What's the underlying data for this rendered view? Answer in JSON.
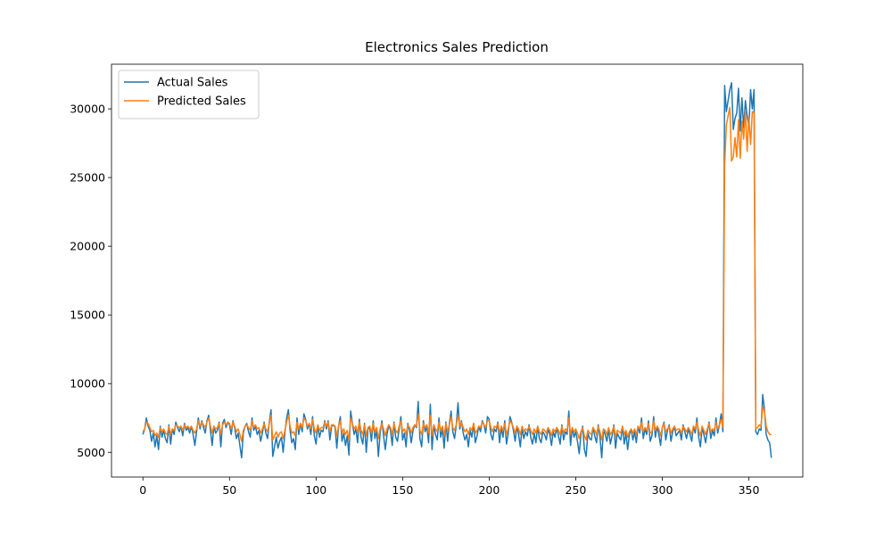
{
  "chart_data": {
    "type": "line",
    "title": "Electronics Sales Prediction",
    "x": [
      0,
      1,
      2,
      3,
      4,
      5,
      6,
      7,
      8,
      9,
      10,
      11,
      12,
      13,
      14,
      15,
      16,
      17,
      18,
      19,
      20,
      21,
      22,
      23,
      24,
      25,
      26,
      27,
      28,
      29,
      30,
      31,
      32,
      33,
      34,
      35,
      36,
      37,
      38,
      39,
      40,
      41,
      42,
      43,
      44,
      45,
      46,
      47,
      48,
      49,
      50,
      51,
      52,
      53,
      54,
      55,
      56,
      57,
      58,
      59,
      60,
      61,
      62,
      63,
      64,
      65,
      66,
      67,
      68,
      69,
      70,
      71,
      72,
      73,
      74,
      75,
      76,
      77,
      78,
      79,
      80,
      81,
      82,
      83,
      84,
      85,
      86,
      87,
      88,
      89,
      90,
      91,
      92,
      93,
      94,
      95,
      96,
      97,
      98,
      99,
      100,
      101,
      102,
      103,
      104,
      105,
      106,
      107,
      108,
      109,
      110,
      111,
      112,
      113,
      114,
      115,
      116,
      117,
      118,
      119,
      120,
      121,
      122,
      123,
      124,
      125,
      126,
      127,
      128,
      129,
      130,
      131,
      132,
      133,
      134,
      135,
      136,
      137,
      138,
      139,
      140,
      141,
      142,
      143,
      144,
      145,
      146,
      147,
      148,
      149,
      150,
      151,
      152,
      153,
      154,
      155,
      156,
      157,
      158,
      159,
      160,
      161,
      162,
      163,
      164,
      165,
      166,
      167,
      168,
      169,
      170,
      171,
      172,
      173,
      174,
      175,
      176,
      177,
      178,
      179,
      180,
      181,
      182,
      183,
      184,
      185,
      186,
      187,
      188,
      189,
      190,
      191,
      192,
      193,
      194,
      195,
      196,
      197,
      198,
      199,
      200,
      201,
      202,
      203,
      204,
      205,
      206,
      207,
      208,
      209,
      210,
      211,
      212,
      213,
      214,
      215,
      216,
      217,
      218,
      219,
      220,
      221,
      222,
      223,
      224,
      225,
      226,
      227,
      228,
      229,
      230,
      231,
      232,
      233,
      234,
      235,
      236,
      237,
      238,
      239,
      240,
      241,
      242,
      243,
      244,
      245,
      246,
      247,
      248,
      249,
      250,
      251,
      252,
      253,
      254,
      255,
      256,
      257,
      258,
      259,
      260,
      261,
      262,
      263,
      264,
      265,
      266,
      267,
      268,
      269,
      270,
      271,
      272,
      273,
      274,
      275,
      276,
      277,
      278,
      279,
      280,
      281,
      282,
      283,
      284,
      285,
      286,
      287,
      288,
      289,
      290,
      291,
      292,
      293,
      294,
      295,
      296,
      297,
      298,
      299,
      300,
      301,
      302,
      303,
      304,
      305,
      306,
      307,
      308,
      309,
      310,
      311,
      312,
      313,
      314,
      315,
      316,
      317,
      318,
      319,
      320,
      321,
      322,
      323,
      324,
      325,
      326,
      327,
      328,
      329,
      330,
      331,
      332,
      333,
      334,
      335,
      336,
      337,
      338,
      339,
      340,
      341,
      342,
      343,
      344,
      345,
      346,
      347,
      348,
      349,
      350,
      351,
      352,
      353,
      354,
      355,
      356,
      357,
      358,
      359,
      360,
      361,
      362,
      363
    ],
    "series": [
      {
        "name": "Actual Sales",
        "color": "#1f77b4",
        "values": [
          6300,
          6700,
          7500,
          6900,
          6600,
          5800,
          6400,
          5400,
          6200,
          5200,
          6900,
          6100,
          6600,
          6000,
          5700,
          7000,
          5600,
          6700,
          6300,
          7200,
          6800,
          6500,
          6900,
          6200,
          7100,
          6600,
          6800,
          6400,
          6900,
          6300,
          5500,
          6500,
          7500,
          6700,
          7300,
          6800,
          6400,
          7300,
          7700,
          6600,
          5500,
          6900,
          6400,
          6600,
          7200,
          5400,
          7100,
          7400,
          6800,
          7200,
          7000,
          6300,
          7300,
          6800,
          6000,
          6400,
          5500,
          4600,
          6400,
          6900,
          7100,
          6500,
          6100,
          7500,
          6600,
          6900,
          6300,
          6600,
          5800,
          6400,
          7200,
          6400,
          6000,
          7200,
          8100,
          4700,
          5400,
          6100,
          5300,
          5800,
          6100,
          5000,
          6400,
          7500,
          8100,
          6600,
          5700,
          6000,
          5200,
          7500,
          6300,
          7100,
          6500,
          7800,
          7400,
          6700,
          7100,
          6300,
          7600,
          6200,
          5600,
          7000,
          6100,
          6600,
          6500,
          7300,
          6700,
          7300,
          5900,
          6900,
          7000,
          6800,
          5300,
          6900,
          7600,
          5800,
          6400,
          5500,
          6200,
          4800,
          8000,
          7100,
          6300,
          6700,
          5700,
          7400,
          6100,
          5600,
          7100,
          5000,
          6700,
          6800,
          5800,
          7300,
          6000,
          6600,
          4700,
          6400,
          7300,
          6200,
          5200,
          6300,
          7000,
          6600,
          5500,
          7200,
          6100,
          5800,
          6700,
          7600,
          5900,
          6400,
          5400,
          7100,
          6600,
          5700,
          6600,
          7000,
          6800,
          8700,
          6000,
          5400,
          7300,
          6500,
          6900,
          5700,
          8500,
          5200,
          7000,
          6300,
          5900,
          7500,
          6100,
          6700,
          5300,
          7200,
          5800,
          7100,
          8000,
          6500,
          6000,
          7000,
          8600,
          6700,
          7300,
          6400,
          5900,
          6300,
          5400,
          6600,
          6100,
          7100,
          5700,
          6200,
          6900,
          6500,
          7300,
          7000,
          6400,
          7600,
          7400,
          6300,
          5900,
          6700,
          6500,
          7200,
          5700,
          6800,
          6100,
          7300,
          5600,
          6400,
          7600,
          7200,
          6600,
          5800,
          6900,
          6300,
          5400,
          6800,
          6000,
          6500,
          6200,
          7000,
          6100,
          5600,
          6400,
          5700,
          6900,
          6000,
          5700,
          6500,
          6300,
          5900,
          6700,
          6300,
          5500,
          6500,
          6100,
          6800,
          6200,
          5600,
          7000,
          5900,
          6500,
          6300,
          8000,
          5500,
          6800,
          6100,
          6500,
          5800,
          4900,
          6300,
          6900,
          5200,
          4700,
          6400,
          6000,
          5900,
          6800,
          6200,
          5700,
          7000,
          6100,
          4600,
          6600,
          6300,
          5800,
          6700,
          5600,
          6200,
          7000,
          5300,
          6400,
          6100,
          5900,
          6900,
          5600,
          6400,
          5200,
          6300,
          6700,
          5900,
          6500,
          5700,
          6900,
          6400,
          7500,
          6000,
          6700,
          6300,
          7300,
          5800,
          6200,
          7600,
          6100,
          6900,
          6300,
          5500,
          6800,
          7200,
          5900,
          6600,
          7000,
          5800,
          6500,
          6900,
          6200,
          6400,
          6600,
          5900,
          7000,
          6500,
          6000,
          6700,
          6300,
          5800,
          6900,
          6400,
          7500,
          6100,
          5400,
          6800,
          6300,
          5700,
          6500,
          7200,
          6000,
          6600,
          6200,
          7500,
          6400,
          7000,
          7800,
          6500,
          31700,
          29800,
          30600,
          31400,
          31900,
          28500,
          29300,
          29700,
          31500,
          28400,
          30800,
          28600,
          30600,
          29500,
          28700,
          31400,
          30000,
          31400,
          6500,
          6300,
          6700,
          6600,
          9200,
          8100,
          6300,
          5900,
          5700,
          4600
        ]
      },
      {
        "name": "Predicted Sales",
        "color": "#ff7f0e",
        "values": [
          6500,
          6700,
          7200,
          7100,
          6800,
          6500,
          6600,
          6200,
          6400,
          6100,
          6800,
          6500,
          6700,
          6400,
          6300,
          6900,
          6300,
          6700,
          6600,
          7000,
          6900,
          6800,
          6900,
          6600,
          7000,
          6800,
          6900,
          6700,
          6900,
          6600,
          6400,
          6700,
          7300,
          6900,
          7200,
          7000,
          6800,
          7200,
          7500,
          6900,
          6400,
          6900,
          6700,
          6800,
          7100,
          6300,
          7000,
          7200,
          7000,
          7200,
          7100,
          6700,
          7200,
          6900,
          6500,
          6700,
          6300,
          5800,
          6600,
          6900,
          7000,
          6800,
          6600,
          7300,
          6800,
          7000,
          6700,
          6800,
          6400,
          6700,
          7100,
          6700,
          6500,
          7100,
          7700,
          5900,
          6200,
          6500,
          6100,
          6400,
          6500,
          6000,
          6600,
          7200,
          7700,
          6900,
          6400,
          6500,
          6200,
          7200,
          6700,
          7100,
          6800,
          7500,
          7300,
          6900,
          7100,
          6700,
          7400,
          6700,
          6400,
          7000,
          6600,
          6800,
          6800,
          7200,
          6900,
          7200,
          6500,
          7000,
          7000,
          6900,
          6200,
          6900,
          7300,
          6400,
          6700,
          6300,
          6600,
          5900,
          7500,
          7100,
          6700,
          6900,
          6400,
          7200,
          6600,
          6300,
          7000,
          6200,
          6800,
          6900,
          6400,
          7100,
          6500,
          6800,
          6000,
          6700,
          7100,
          6700,
          6200,
          6700,
          7000,
          6800,
          6300,
          7100,
          6600,
          6400,
          6900,
          7300,
          6500,
          6700,
          6300,
          7000,
          6800,
          6400,
          6800,
          7000,
          6900,
          7800,
          6600,
          6300,
          7100,
          6800,
          7000,
          6400,
          7700,
          6200,
          7000,
          6700,
          6500,
          7200,
          6600,
          6900,
          6200,
          7100,
          6500,
          7000,
          7600,
          6800,
          6600,
          7000,
          7700,
          6900,
          7200,
          6800,
          6500,
          6700,
          6300,
          6800,
          6600,
          7100,
          6400,
          6600,
          6900,
          6800,
          7200,
          7000,
          6800,
          7300,
          7300,
          6800,
          6500,
          6900,
          6800,
          7100,
          6400,
          6900,
          6600,
          7100,
          6300,
          6700,
          7300,
          7100,
          6800,
          6400,
          6900,
          6700,
          6300,
          6900,
          6500,
          6700,
          6600,
          6900,
          6600,
          6300,
          6700,
          6400,
          6900,
          6500,
          6300,
          6700,
          6600,
          6400,
          6800,
          6600,
          6200,
          6700,
          6500,
          6800,
          6600,
          6300,
          6900,
          6400,
          6700,
          6600,
          7500,
          6300,
          6800,
          6500,
          6700,
          6400,
          6000,
          6500,
          6800,
          6200,
          5900,
          6600,
          6400,
          6300,
          6800,
          6600,
          6300,
          6900,
          6500,
          5900,
          6700,
          6600,
          6300,
          6800,
          6300,
          6500,
          6900,
          6100,
          6600,
          6500,
          6400,
          6900,
          6300,
          6600,
          6100,
          6500,
          6700,
          6400,
          6700,
          6300,
          6900,
          6700,
          7200,
          6500,
          6800,
          6600,
          7100,
          6400,
          6500,
          7300,
          6600,
          6900,
          6700,
          6200,
          6800,
          7100,
          6500,
          6700,
          6900,
          6400,
          6700,
          6900,
          6600,
          6700,
          6700,
          6400,
          6900,
          6700,
          6500,
          6800,
          6600,
          6300,
          6900,
          6700,
          7200,
          6600,
          6200,
          6900,
          6600,
          6300,
          6700,
          7100,
          6500,
          6700,
          6600,
          7200,
          6700,
          7000,
          7400,
          6800,
          25900,
          28800,
          29500,
          30100,
          26200,
          26500,
          27900,
          26500,
          29200,
          26400,
          29100,
          27800,
          29900,
          26900,
          29400,
          27400,
          29800,
          29700,
          6700,
          6800,
          7000,
          6900,
          8300,
          8000,
          6900,
          6500,
          6300,
          6300
        ]
      }
    ],
    "xlim": [
      -18.15,
      381.15
    ],
    "ylim": [
      3200,
      33250
    ],
    "xticks": [
      0,
      50,
      100,
      150,
      200,
      250,
      300,
      350
    ],
    "yticks": [
      5000,
      10000,
      15000,
      20000,
      25000,
      30000
    ],
    "legend": "upper left",
    "grid": false
  }
}
